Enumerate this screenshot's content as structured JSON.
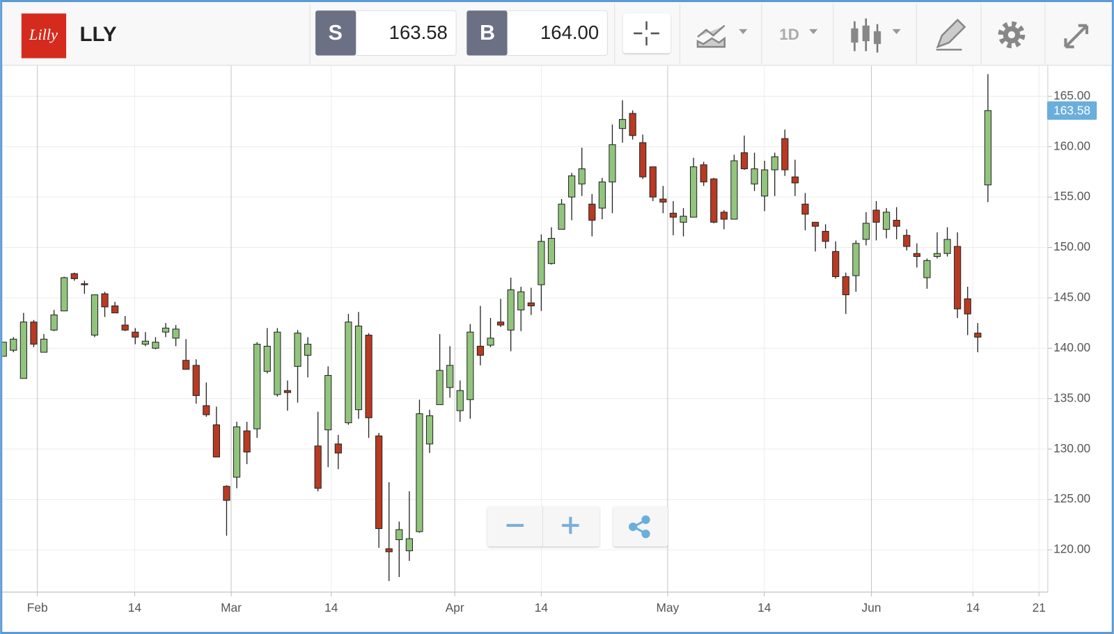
{
  "toolbar": {
    "logo": "Lilly",
    "symbol": "LLY",
    "sell": {
      "label": "S",
      "price": "163.58"
    },
    "buy": {
      "label": "B",
      "price": "164.00"
    },
    "interval": "1D"
  },
  "chart_data": {
    "type": "candlestick",
    "x": [
      0,
      1,
      2,
      3,
      4,
      5,
      6,
      7,
      8,
      9,
      10,
      11,
      12,
      13,
      14,
      15,
      16,
      17,
      18,
      19,
      20,
      21,
      22,
      23,
      24,
      25,
      26,
      27,
      28,
      29,
      30,
      31,
      32,
      33,
      34,
      35,
      36,
      37,
      38,
      39,
      40,
      41,
      42,
      43,
      44,
      45,
      46,
      47,
      48,
      49,
      50,
      51,
      52,
      53,
      54,
      55,
      56,
      57,
      58,
      59,
      60,
      61,
      62,
      63,
      64,
      65,
      66,
      67,
      68,
      69,
      70,
      71,
      72,
      73,
      74,
      75,
      76,
      77,
      78,
      79,
      80,
      81,
      82,
      83,
      84,
      85,
      86,
      87,
      88,
      89,
      90,
      91,
      92,
      93,
      94,
      95,
      96,
      97
    ],
    "open": [
      139.2,
      139.8,
      137.0,
      142.6,
      139.6,
      141.8,
      143.7,
      147.4,
      146.4,
      141.3,
      145.4,
      144.2,
      142.3,
      141.6,
      140.4,
      140.0,
      141.6,
      141.0,
      138.8,
      138.3,
      134.3,
      132.4,
      126.3,
      127.2,
      131.8,
      132.0,
      137.7,
      135.4,
      135.8,
      138.2,
      139.3,
      130.3,
      131.9,
      130.5,
      132.6,
      133.9,
      141.3,
      131.3,
      120.1,
      121.0,
      119.9,
      121.8,
      130.5,
      134.4,
      136.1,
      133.8,
      134.9,
      140.2,
      140.3,
      142.6,
      141.8,
      143.8,
      144.5,
      146.3,
      148.4,
      151.8,
      155.0,
      156.3,
      154.3,
      153.9,
      156.5,
      161.8,
      163.3,
      160.4,
      158.0,
      154.8,
      153.4,
      152.5,
      153.0,
      158.2,
      156.8,
      153.5,
      152.8,
      159.4,
      156.3,
      155.1,
      157.7,
      160.8,
      157.0,
      154.3,
      152.5,
      151.6,
      149.6,
      147.1,
      147.2,
      150.8,
      153.7,
      151.8,
      152.7,
      151.2,
      149.4,
      147.0,
      149.1,
      149.4,
      150.1,
      144.9,
      141.5,
      156.2
    ],
    "high": [
      140.6,
      141.1,
      143.5,
      142.8,
      141.4,
      143.8,
      147.1,
      147.5,
      146.7,
      145.3,
      145.6,
      144.6,
      143.2,
      142.0,
      141.6,
      141.1,
      142.5,
      142.3,
      140.9,
      138.9,
      136.6,
      134.2,
      126.4,
      132.7,
      132.7,
      140.6,
      142.0,
      142.0,
      136.8,
      141.8,
      141.1,
      133.7,
      138.2,
      131.4,
      143.4,
      143.6,
      141.5,
      131.6,
      126.7,
      122.8,
      125.8,
      134.9,
      133.9,
      141.4,
      140.2,
      136.8,
      142.4,
      144.2,
      143.0,
      144.9,
      147.0,
      146.1,
      146.0,
      151.3,
      152.0,
      154.8,
      157.4,
      159.9,
      155.3,
      156.9,
      162.2,
      164.6,
      163.6,
      161.2,
      158.0,
      156.1,
      154.6,
      153.9,
      158.9,
      158.5,
      156.9,
      153.7,
      159.2,
      161.1,
      159.4,
      158.6,
      159.4,
      161.7,
      158.7,
      155.4,
      152.5,
      152.3,
      150.6,
      147.5,
      150.7,
      153.5,
      154.6,
      153.9,
      154.0,
      151.8,
      150.4,
      148.9,
      151.5,
      152.0,
      151.5,
      146.1,
      142.5,
      167.2
    ],
    "low": [
      139.2,
      139.6,
      137.0,
      140.1,
      139.6,
      141.7,
      143.7,
      146.7,
      145.4,
      141.1,
      143.1,
      143.5,
      141.7,
      140.4,
      140.2,
      139.9,
      141.1,
      140.2,
      137.9,
      134.5,
      133.2,
      129.2,
      121.4,
      126.1,
      128.5,
      131.1,
      137.5,
      135.2,
      133.8,
      134.6,
      137.1,
      125.8,
      128.2,
      128.0,
      132.4,
      133.0,
      131.1,
      120.2,
      116.9,
      117.3,
      118.9,
      121.7,
      129.6,
      134.4,
      135.1,
      132.7,
      133.0,
      138.3,
      140.1,
      142.1,
      139.7,
      141.7,
      143.3,
      143.7,
      148.3,
      151.8,
      152.7,
      155.1,
      151.1,
      152.8,
      153.4,
      160.4,
      160.7,
      156.8,
      154.6,
      153.4,
      151.2,
      151.1,
      153.0,
      156.1,
      152.4,
      151.8,
      152.8,
      157.7,
      155.6,
      153.6,
      155.1,
      157.1,
      155.1,
      151.7,
      149.6,
      149.9,
      146.9,
      143.4,
      145.6,
      150.2,
      150.7,
      150.9,
      150.8,
      149.7,
      148.0,
      145.9,
      148.9,
      149.1,
      143.0,
      141.3,
      139.6,
      154.5
    ],
    "close": [
      140.6,
      140.9,
      142.6,
      140.4,
      140.9,
      143.3,
      147.0,
      146.9,
      146.3,
      145.3,
      144.1,
      143.5,
      141.8,
      141.1,
      140.7,
      140.6,
      142.0,
      141.9,
      137.9,
      135.3,
      133.4,
      129.2,
      124.9,
      132.2,
      129.7,
      140.4,
      140.2,
      141.6,
      135.6,
      141.5,
      140.4,
      126.1,
      137.3,
      129.6,
      142.6,
      142.2,
      133.1,
      122.1,
      119.8,
      122.0,
      121.1,
      133.5,
      133.3,
      137.8,
      138.3,
      135.8,
      141.6,
      139.3,
      141.0,
      142.3,
      145.8,
      145.6,
      144.2,
      150.6,
      150.9,
      154.3,
      157.1,
      157.8,
      152.7,
      156.5,
      160.2,
      162.7,
      161.1,
      157.0,
      155.0,
      154.5,
      153.0,
      153.1,
      158.0,
      156.5,
      152.5,
      152.8,
      158.6,
      157.8,
      157.8,
      157.7,
      159.0,
      157.7,
      156.4,
      153.3,
      152.1,
      150.6,
      147.1,
      145.3,
      150.4,
      152.4,
      152.5,
      153.5,
      152.1,
      150.1,
      149.1,
      148.7,
      149.4,
      150.8,
      143.9,
      143.4,
      141.1,
      163.58
    ],
    "up_color": "#92c47e",
    "down_color": "#b83a22",
    "last_price": 163.58,
    "last_price_color": "#6aaedb",
    "xlim": [
      -0.1,
      102.9
    ],
    "xticks": [
      {
        "value": 3.36,
        "label": "Feb"
      },
      {
        "value": 12.94,
        "label": "14"
      },
      {
        "value": 22.45,
        "label": "Mar"
      },
      {
        "value": 32.31,
        "label": "14"
      },
      {
        "value": 44.48,
        "label": "Apr"
      },
      {
        "value": 53.0,
        "label": "14"
      },
      {
        "value": 65.45,
        "label": "May"
      },
      {
        "value": 74.97,
        "label": "14"
      },
      {
        "value": 85.52,
        "label": "Jun"
      },
      {
        "value": 95.52,
        "label": "14"
      },
      {
        "value": 102.03,
        "label": "21"
      }
    ],
    "ylim": [
      115.8,
      168
    ],
    "yticks": [
      {
        "value": 120,
        "label": "120.00"
      },
      {
        "value": 125,
        "label": "125.00"
      },
      {
        "value": 130,
        "label": "130.00"
      },
      {
        "value": 135,
        "label": "135.00"
      },
      {
        "value": 140,
        "label": "140.00"
      },
      {
        "value": 145,
        "label": "145.00"
      },
      {
        "value": 150,
        "label": "150.00"
      },
      {
        "value": 155,
        "label": "155.00"
      },
      {
        "value": 160,
        "label": "160.00"
      },
      {
        "value": 165,
        "label": "165.00"
      }
    ],
    "grid": true
  }
}
